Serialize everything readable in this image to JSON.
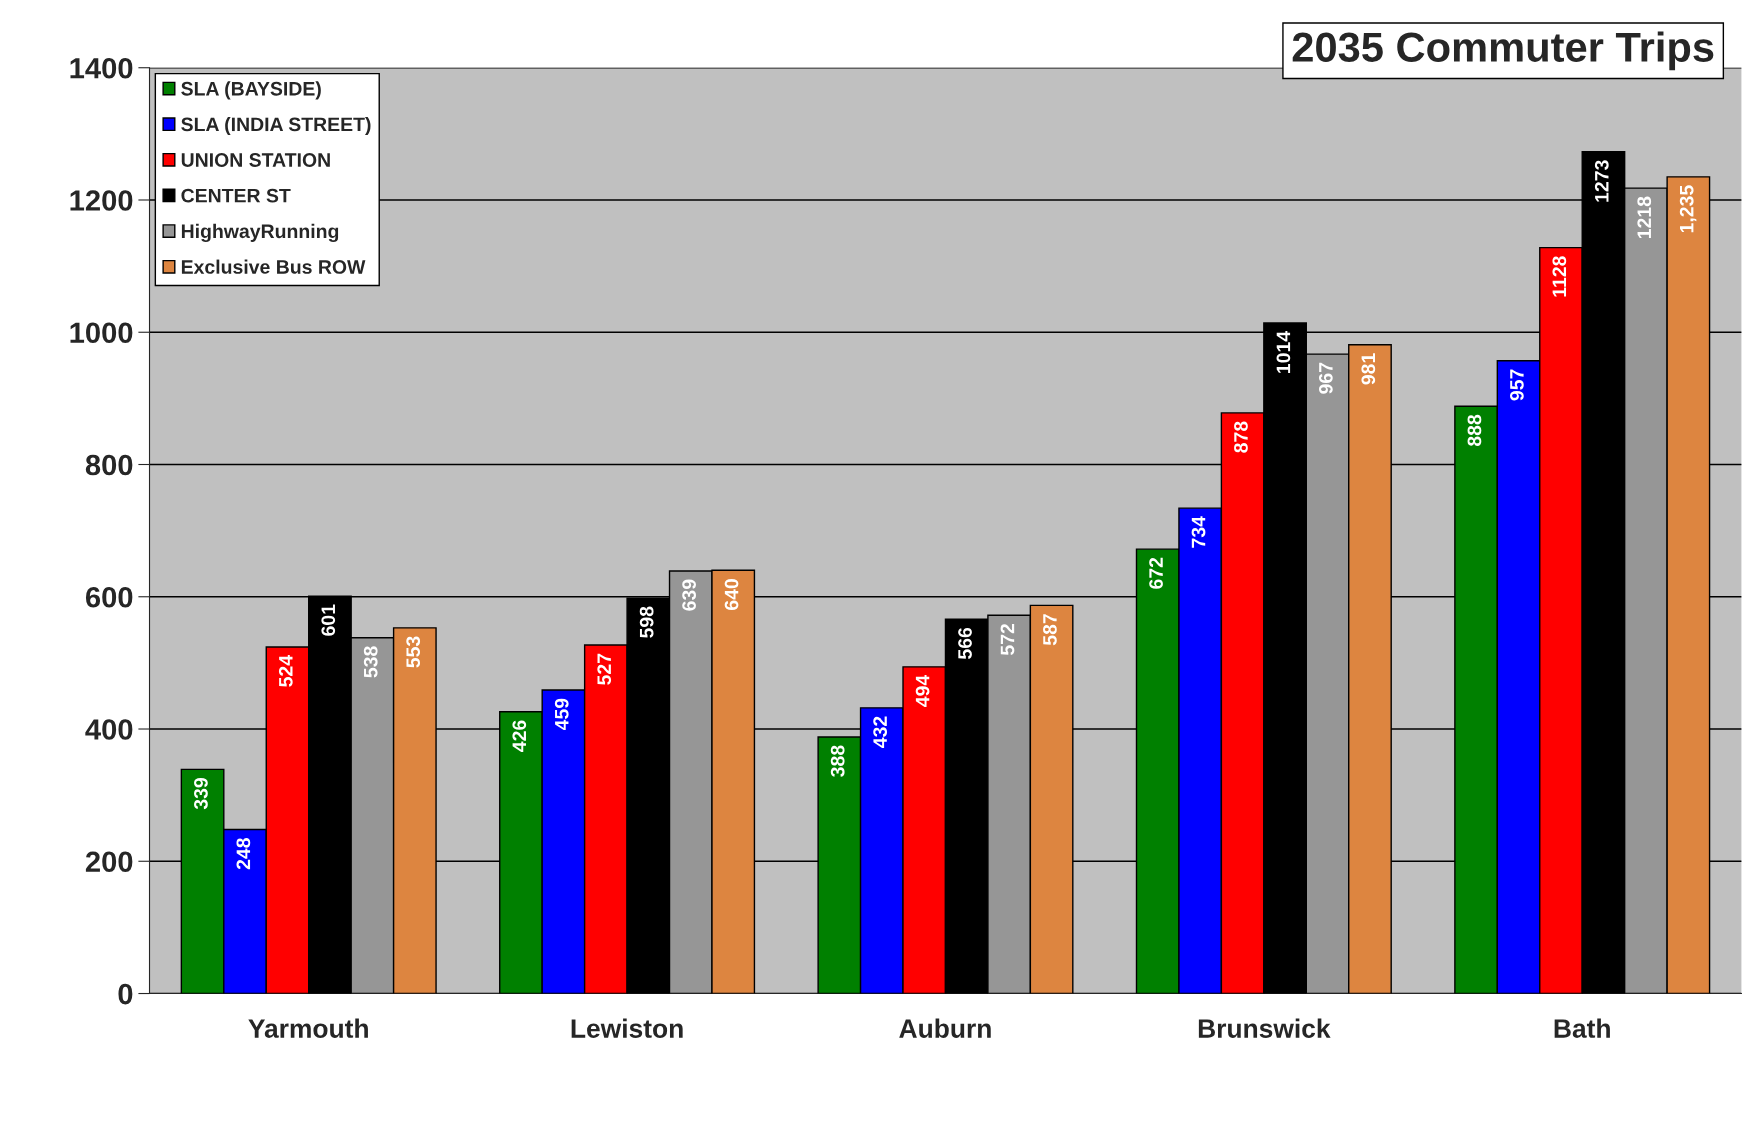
{
  "chart_data": {
    "type": "bar",
    "title": "2035 Commuter Trips",
    "categories": [
      "Yarmouth",
      "Lewiston",
      "Auburn",
      "Brunswick",
      "Bath"
    ],
    "series": [
      {
        "name": "SLA (BAYSIDE)",
        "color": "#008000",
        "values": [
          339,
          426,
          388,
          672,
          888
        ],
        "value_labels": [
          "339",
          "426",
          "388",
          "672",
          "888"
        ]
      },
      {
        "name": "SLA (INDIA STREET)",
        "color": "#0000ff",
        "values": [
          248,
          459,
          432,
          734,
          957
        ],
        "value_labels": [
          "248",
          "459",
          "432",
          "734",
          "957"
        ]
      },
      {
        "name": "UNION STATION",
        "color": "#ff0000",
        "values": [
          524,
          527,
          494,
          878,
          1128
        ],
        "value_labels": [
          "524",
          "527",
          "494",
          "878",
          "1128"
        ]
      },
      {
        "name": "CENTER ST",
        "color": "#000000",
        "values": [
          601,
          598,
          566,
          1014,
          1273
        ],
        "value_labels": [
          "601",
          "598",
          "566",
          "1014",
          "1273"
        ]
      },
      {
        "name": "HighwayRunning",
        "color": "#969696",
        "values": [
          538,
          639,
          572,
          967,
          1218
        ],
        "value_labels": [
          "538",
          "639",
          "572",
          "967",
          "1218"
        ]
      },
      {
        "name": "Exclusive Bus ROW",
        "color": "#dd8540",
        "values": [
          553,
          640,
          587,
          981,
          1235
        ],
        "value_labels": [
          "553",
          "640",
          "587",
          "981",
          "1,235"
        ]
      }
    ],
    "ylim": [
      0,
      1400
    ],
    "yticks": [
      0,
      200,
      400,
      600,
      800,
      1000,
      1200,
      1400
    ],
    "grid": "y",
    "legend": "top left"
  }
}
